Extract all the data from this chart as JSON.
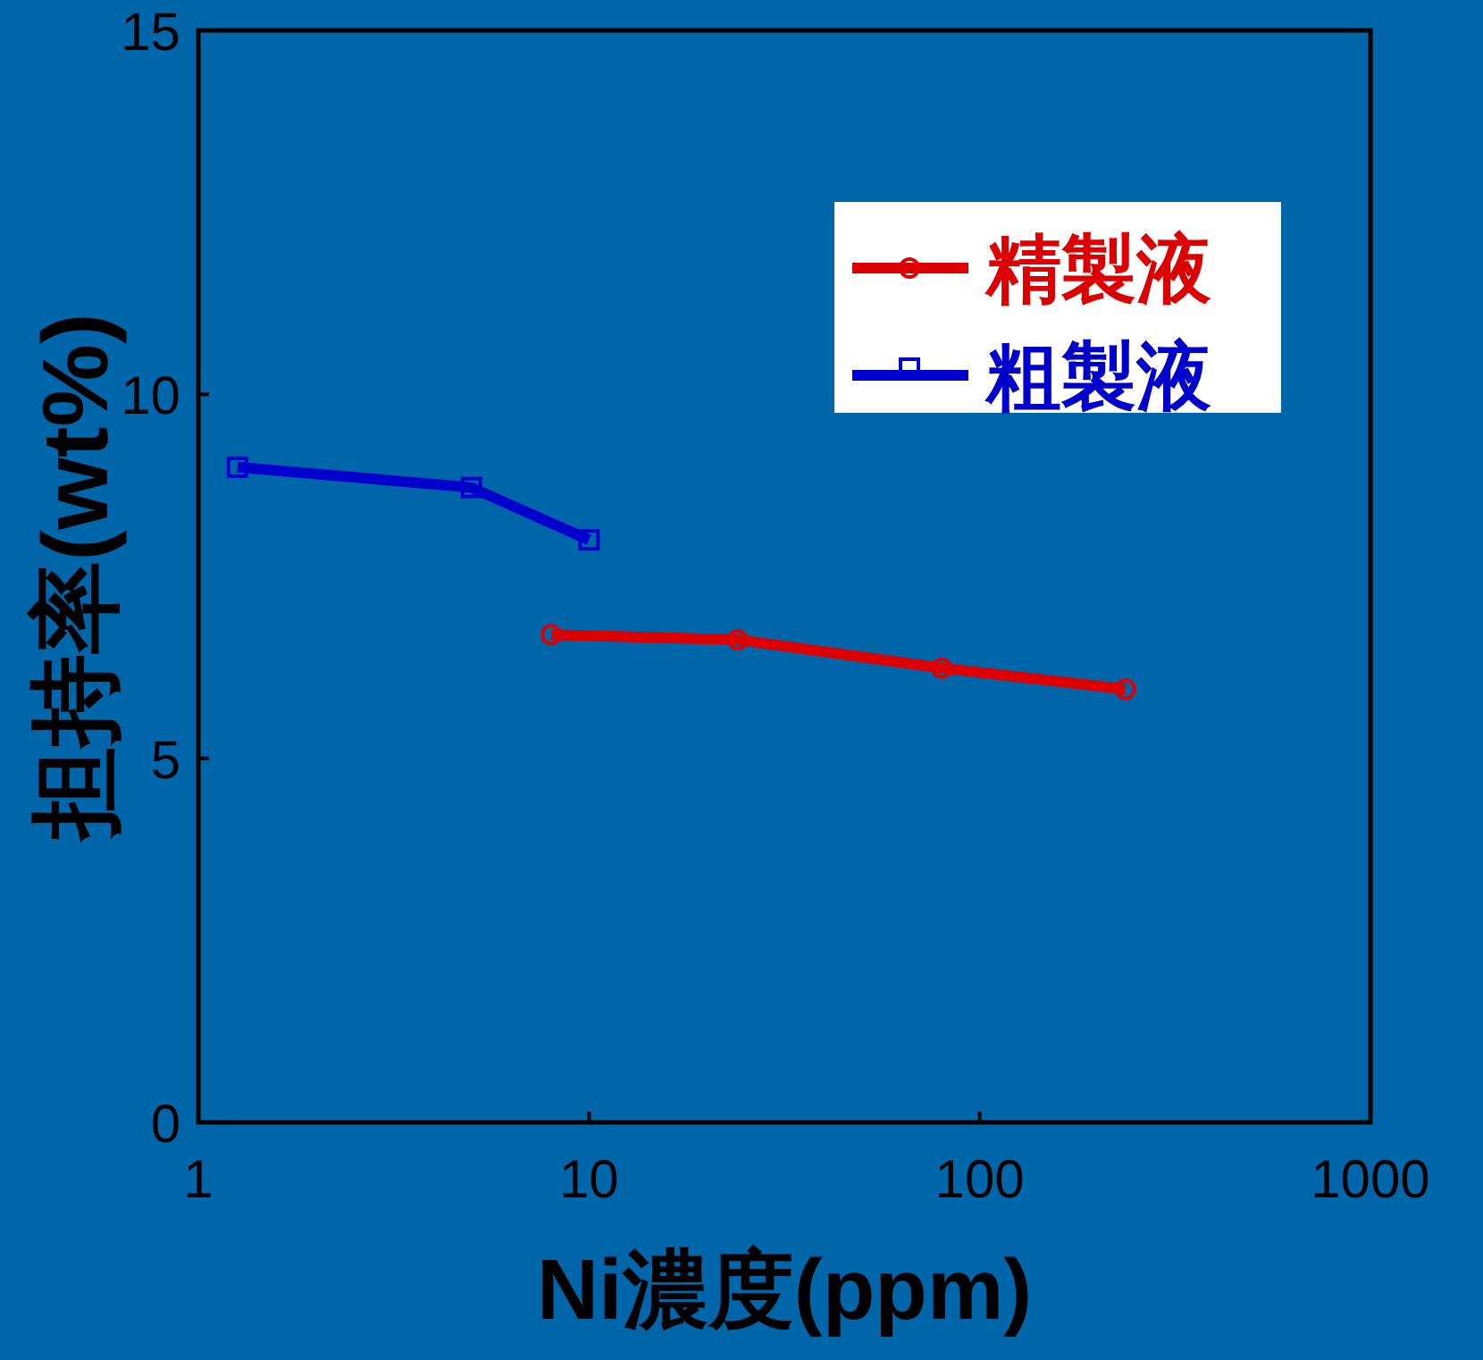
{
  "chart_data": {
    "type": "line",
    "xlabel": "Ni濃度(ppm)",
    "ylabel": "担持率(wt%)",
    "log": "x",
    "xlim": [
      1,
      1000
    ],
    "xticks": [
      1,
      10,
      100,
      1000
    ],
    "ylim": [
      0,
      15
    ],
    "yticks": [
      0,
      5,
      10,
      15
    ],
    "grid": false,
    "legend": "top right",
    "series": [
      {
        "name": "精製液",
        "color": "#dd0000",
        "marker": "circle",
        "x": [
          8,
          24,
          80,
          236
        ],
        "values": [
          6.7,
          6.63,
          6.24,
          5.95
        ]
      },
      {
        "name": "粗製液",
        "color": "#0000cc",
        "marker": "square",
        "x": [
          1.26,
          5,
          10
        ],
        "values": [
          9.0,
          8.72,
          8.0
        ]
      }
    ]
  }
}
